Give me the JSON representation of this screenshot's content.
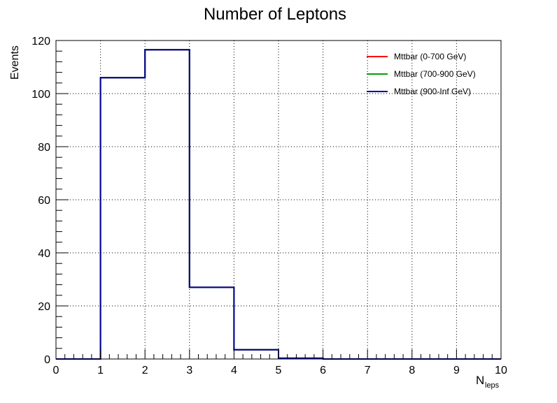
{
  "chart_data": {
    "type": "line",
    "title": "Number of Leptons",
    "xlabel_main": "N",
    "xlabel_sub": "leps",
    "ylabel": "Events",
    "xlim": [
      0,
      10
    ],
    "ylim": [
      0,
      120
    ],
    "x_ticks": [
      "0",
      "1",
      "2",
      "3",
      "4",
      "5",
      "6",
      "7",
      "8",
      "9",
      "10"
    ],
    "y_ticks": [
      "0",
      "20",
      "40",
      "60",
      "80",
      "100",
      "120"
    ],
    "grid": true,
    "legend_position": "top-right",
    "bin_edges": [
      0,
      1,
      2,
      3,
      4,
      5,
      6,
      7,
      8,
      9,
      10
    ],
    "series": [
      {
        "name": "Mttbar (0-700 GeV)",
        "color": "#ff0000",
        "values": [
          0,
          106,
          116.5,
          27,
          3.5,
          0.3,
          0,
          0,
          0,
          0
        ]
      },
      {
        "name": "Mttbar (700-900 GeV)",
        "color": "#00a000",
        "values": [
          0,
          106,
          116.5,
          27,
          3.5,
          0.3,
          0,
          0,
          0,
          0
        ]
      },
      {
        "name": "Mttbar (900-Inf GeV)",
        "color": "#0000a0",
        "values": [
          0,
          106,
          116.5,
          27,
          3.5,
          0.3,
          0,
          0,
          0,
          0
        ]
      }
    ]
  }
}
